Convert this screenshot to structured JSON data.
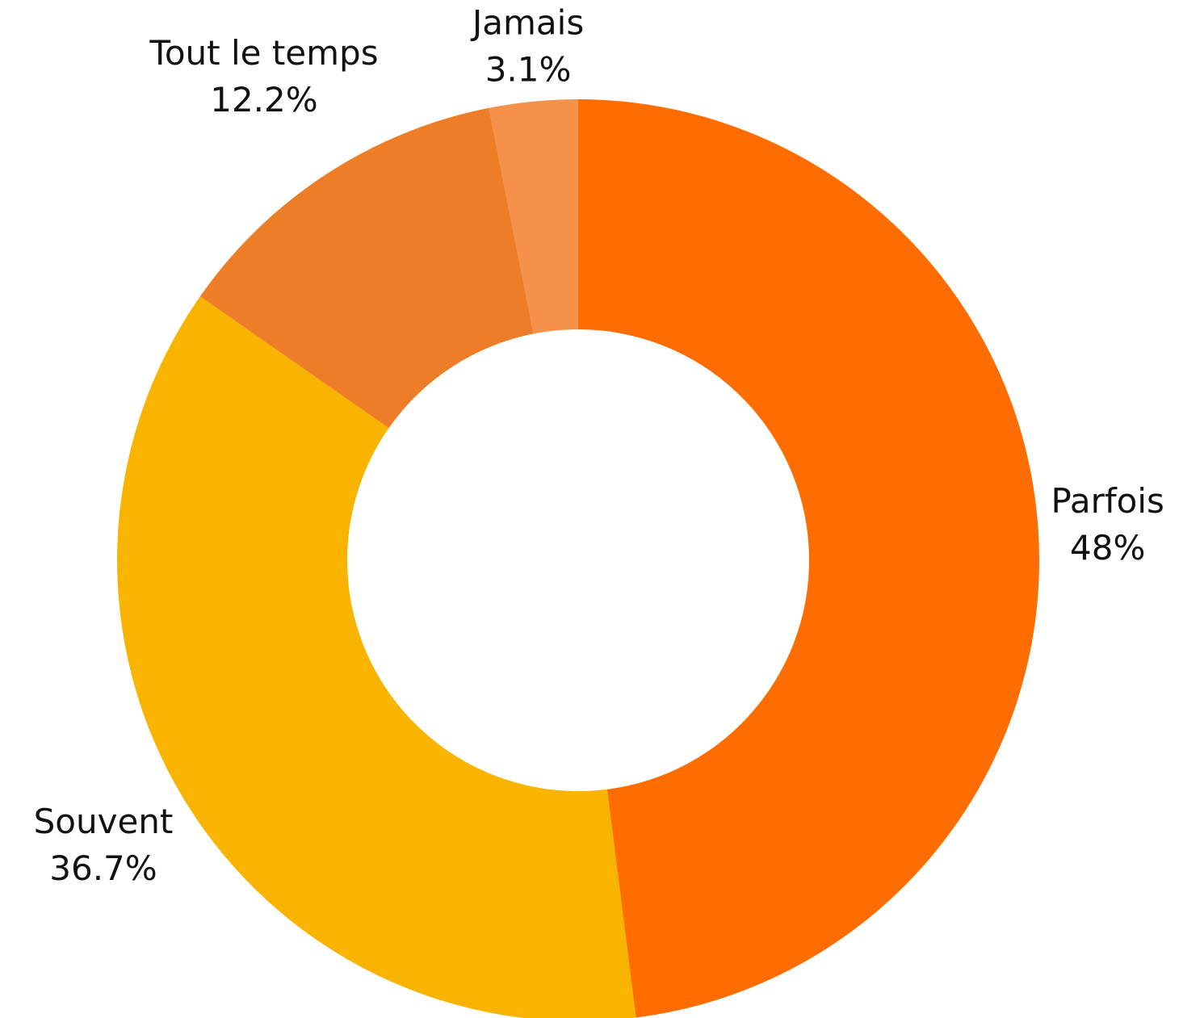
{
  "chart_data": {
    "type": "donut",
    "categories": [
      "Parfois",
      "Souvent",
      "Tout le temps",
      "Jamais"
    ],
    "values": [
      48,
      36.7,
      12.2,
      3.1
    ],
    "value_labels": [
      "48%",
      "36.7%",
      "12.2%",
      "3.1%"
    ],
    "colors": [
      "#ff6d00",
      "#f9b400",
      "#ed7d27",
      "#f4914a"
    ]
  }
}
